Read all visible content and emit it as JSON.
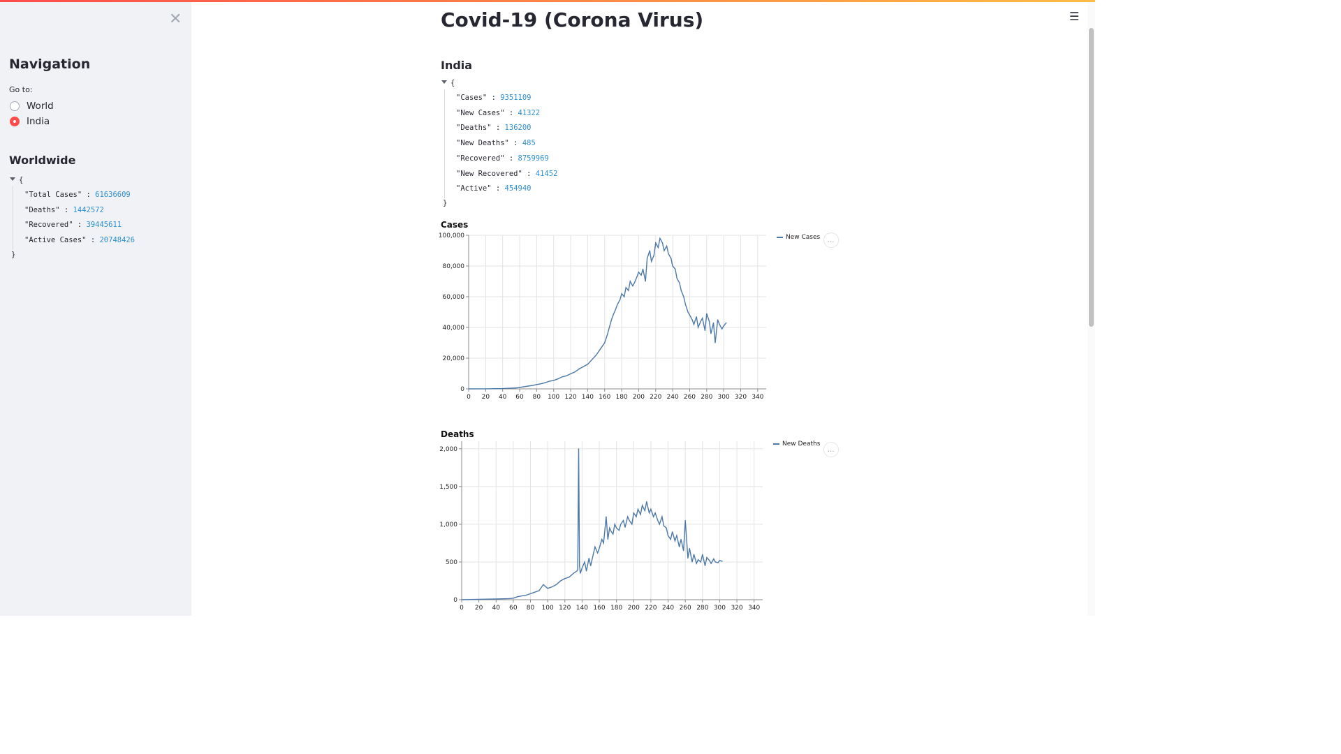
{
  "app": {
    "title": "Covid-19 (Corona Virus)",
    "accent_color": "#ff4b4b",
    "menu_icon": "hamburger-menu-icon",
    "close_icon": "close-icon"
  },
  "sidebar": {
    "title": "Navigation",
    "goto_label": "Go to:",
    "options": [
      {
        "label": "World",
        "selected": false
      },
      {
        "label": "India",
        "selected": true
      }
    ],
    "worldwide_title": "Worldwide",
    "worldwide_json": [
      {
        "key": "\"Total Cases\"",
        "value": "61636609"
      },
      {
        "key": "\"Deaths\"",
        "value": "1442572"
      },
      {
        "key": "\"Recovered\"",
        "value": "39445611"
      },
      {
        "key": "\"Active Cases\"",
        "value": "20748426"
      }
    ]
  },
  "main": {
    "country_title": "India",
    "country_json": [
      {
        "key": "\"Cases\"",
        "value": "9351109"
      },
      {
        "key": "\"New Cases\"",
        "value": "41322"
      },
      {
        "key": "\"Deaths\"",
        "value": "136200"
      },
      {
        "key": "\"New Deaths\"",
        "value": "485"
      },
      {
        "key": "\"Recovered\"",
        "value": "8759969"
      },
      {
        "key": "\"New Recovered\"",
        "value": "41452"
      },
      {
        "key": "\"Active\"",
        "value": "454940"
      }
    ],
    "json_open": "{",
    "json_close": "}",
    "json_sep": ":"
  },
  "chart_data": [
    {
      "type": "line",
      "title": "Cases",
      "series_name": "New Cases",
      "color": "#4c78a8",
      "xlim": [
        0,
        350
      ],
      "ylim": [
        0,
        100000
      ],
      "x_ticks": [
        0,
        20,
        40,
        60,
        80,
        100,
        120,
        140,
        160,
        180,
        200,
        220,
        240,
        260,
        280,
        300,
        320,
        340
      ],
      "y_ticks": [
        0,
        20000,
        40000,
        60000,
        80000,
        100000
      ],
      "y_tick_labels": [
        "0",
        "20,000",
        "40,000",
        "60,000",
        "80,000",
        "100,000"
      ],
      "grid": true,
      "legend": "top-right",
      "x": [
        0,
        20,
        40,
        55,
        60,
        65,
        70,
        75,
        80,
        85,
        90,
        95,
        100,
        105,
        110,
        115,
        120,
        125,
        130,
        135,
        140,
        145,
        150,
        155,
        160,
        163,
        165,
        168,
        170,
        173,
        175,
        178,
        180,
        183,
        185,
        188,
        190,
        193,
        195,
        198,
        200,
        203,
        205,
        208,
        210,
        213,
        215,
        218,
        220,
        223,
        225,
        228,
        230,
        233,
        235,
        238,
        240,
        243,
        245,
        248,
        250,
        253,
        255,
        258,
        260,
        263,
        265,
        268,
        270,
        273,
        275,
        278,
        280,
        283,
        285,
        288,
        290,
        293,
        295,
        298,
        300,
        303
      ],
      "values": [
        0,
        50,
        200,
        600,
        900,
        1400,
        1800,
        2200,
        2800,
        3300,
        4000,
        5000,
        5500,
        6500,
        7800,
        8500,
        9800,
        11000,
        13000,
        14500,
        16000,
        19000,
        22000,
        26000,
        30000,
        35000,
        39000,
        45000,
        48000,
        52000,
        55000,
        58000,
        62000,
        60000,
        66000,
        64000,
        70000,
        67000,
        69000,
        73000,
        76000,
        74000,
        78000,
        70000,
        85000,
        90000,
        83000,
        87000,
        95000,
        92000,
        98000,
        95000,
        90000,
        93000,
        88000,
        85000,
        80000,
        78000,
        72000,
        69000,
        64000,
        60000,
        55000,
        50000,
        48000,
        45000,
        42000,
        47000,
        40000,
        44000,
        46000,
        38000,
        49000,
        44000,
        36000,
        43000,
        30000,
        45000,
        42000,
        39000,
        41000,
        43000
      ]
    },
    {
      "type": "line",
      "title": "Deaths",
      "series_name": "New Deaths",
      "color": "#4c78a8",
      "xlim": [
        0,
        350
      ],
      "ylim": [
        0,
        2100
      ],
      "x_ticks": [
        0,
        20,
        40,
        60,
        80,
        100,
        120,
        140,
        160,
        180,
        200,
        220,
        240,
        260,
        280,
        300,
        320,
        340
      ],
      "y_ticks": [
        0,
        500,
        1000,
        1500,
        2000
      ],
      "y_tick_labels": [
        "0",
        "500",
        "1,000",
        "1,500",
        "2,000"
      ],
      "grid": true,
      "legend": "top-right",
      "x": [
        0,
        20,
        40,
        55,
        60,
        65,
        70,
        75,
        80,
        85,
        90,
        95,
        100,
        105,
        110,
        115,
        120,
        125,
        130,
        134,
        135,
        136,
        137,
        138,
        140,
        143,
        145,
        148,
        150,
        153,
        155,
        158,
        160,
        163,
        165,
        168,
        170,
        172,
        174,
        176,
        178,
        180,
        183,
        185,
        188,
        190,
        193,
        195,
        198,
        200,
        203,
        205,
        208,
        210,
        213,
        215,
        218,
        220,
        223,
        225,
        228,
        230,
        233,
        235,
        238,
        240,
        243,
        245,
        248,
        250,
        253,
        255,
        258,
        260,
        263,
        265,
        268,
        270,
        273,
        275,
        278,
        280,
        283,
        285,
        288,
        290,
        293,
        295,
        298,
        300,
        303
      ],
      "values": [
        0,
        5,
        10,
        15,
        20,
        40,
        50,
        60,
        80,
        100,
        120,
        200,
        150,
        170,
        200,
        250,
        280,
        300,
        350,
        380,
        400,
        2000,
        450,
        350,
        420,
        500,
        380,
        550,
        450,
        600,
        700,
        620,
        680,
        800,
        750,
        1100,
        800,
        950,
        900,
        870,
        1000,
        950,
        920,
        1000,
        1050,
        960,
        1100,
        1050,
        1000,
        1150,
        1100,
        1200,
        1130,
        1250,
        1180,
        1300,
        1150,
        1200,
        1100,
        1150,
        1050,
        1000,
        1100,
        980,
        950,
        850,
        800,
        900,
        780,
        850,
        700,
        800,
        650,
        1050,
        550,
        680,
        500,
        600,
        480,
        530,
        500,
        600,
        450,
        560,
        520,
        480,
        540,
        500,
        490,
        520,
        510
      ]
    }
  ]
}
